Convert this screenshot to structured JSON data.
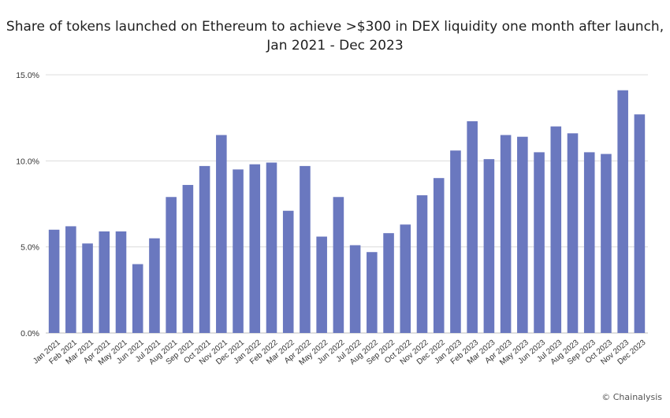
{
  "chart_data": {
    "type": "bar",
    "title": "Share of tokens launched on Ethereum to achieve >$300 in DEX liquidity one month after launch,",
    "subtitle": "Jan 2021 - Dec 2023",
    "categories": [
      "Jan 2021",
      "Feb 2021",
      "Mar 2021",
      "Apr 2021",
      "May 2021",
      "Jun 2021",
      "Jul 2021",
      "Aug 2021",
      "Sep 2021",
      "Oct 2021",
      "Nov 2021",
      "Dec 2021",
      "Jan 2022",
      "Feb 2022",
      "Mar 2022",
      "Apr 2022",
      "May 2022",
      "Jun 2022",
      "Jul 2022",
      "Aug 2022",
      "Sep 2022",
      "Oct 2022",
      "Nov 2022",
      "Dec 2022",
      "Jan 2023",
      "Feb 2023",
      "Mar 2023",
      "Apr 2023",
      "May 2023",
      "Jun 2023",
      "Jul 2023",
      "Aug 2023",
      "Sep 2023",
      "Oct 2023",
      "Nov 2023",
      "Dec 2023"
    ],
    "values": [
      6.0,
      6.2,
      5.2,
      5.9,
      5.9,
      4.0,
      5.5,
      7.9,
      8.6,
      9.7,
      11.5,
      9.5,
      9.8,
      9.9,
      7.1,
      9.7,
      5.6,
      7.9,
      5.1,
      4.7,
      5.8,
      6.3,
      8.0,
      9.0,
      10.6,
      12.3,
      10.1,
      11.5,
      11.4,
      10.5,
      12.0,
      11.6,
      10.5,
      10.4,
      14.1,
      12.7
    ],
    "ylim": [
      0,
      15
    ],
    "yticks": [
      "0.0%",
      "5.0%",
      "10.0%",
      "15.0%"
    ],
    "ytick_values": [
      0,
      5,
      10,
      15
    ],
    "xlabel": "",
    "ylabel": "",
    "grid": true,
    "bar_color": "#6a78bf",
    "grid_color": "#dcdcdc"
  },
  "credit": "© Chainalysis"
}
